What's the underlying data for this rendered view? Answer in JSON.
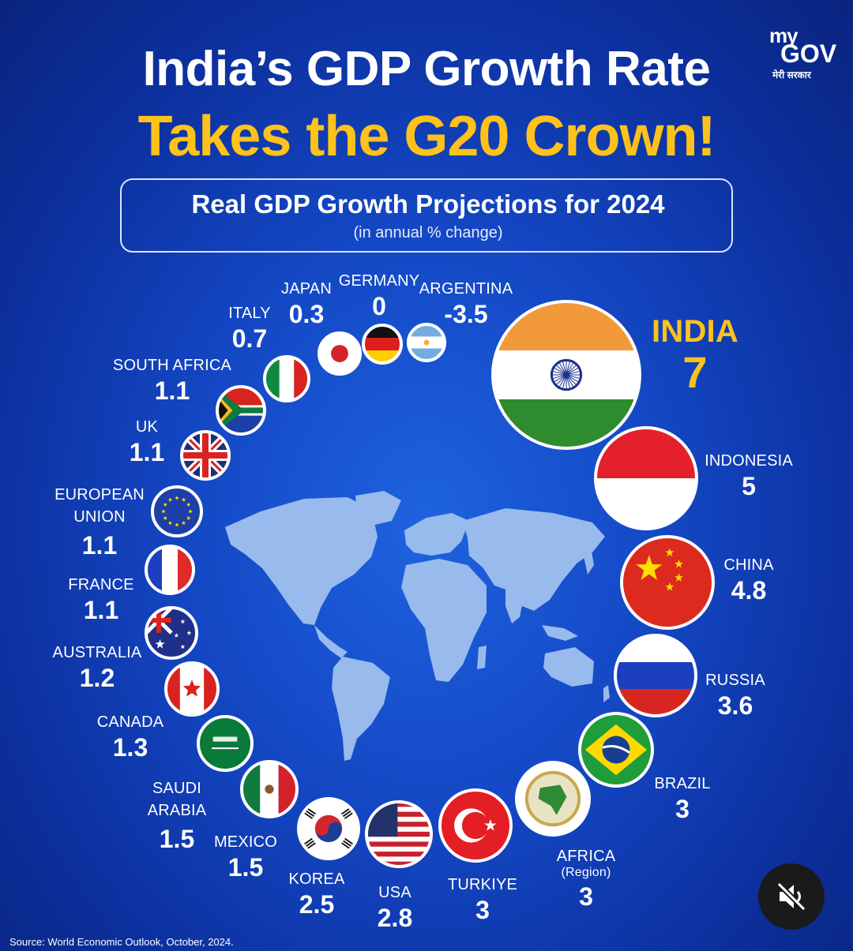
{
  "header": {
    "title_line1": "India’s GDP Growth Rate",
    "title_line2": "Takes the G20 Crown!",
    "subtitle": "Real GDP Growth Projections for 2024",
    "subtitle_note": "(in annual % change)"
  },
  "logo": {
    "line1": "my",
    "line2": "GOV",
    "line3": "मेरी सरकार"
  },
  "source": "Source: World Economic Outlook, October, 2024.",
  "colors": {
    "background": "#1447c4",
    "title_accent": "#ffc21a",
    "map": "#9fc0ee"
  },
  "chart_data": {
    "type": "bubble-ring",
    "title": "Real GDP Growth Projections for 2024",
    "unit": "(in annual % change)",
    "series": [
      {
        "name": "INDIA",
        "value": 7,
        "flag": "india"
      },
      {
        "name": "INDONESIA",
        "value": 5,
        "flag": "indonesia"
      },
      {
        "name": "CHINA",
        "value": 4.8,
        "flag": "china"
      },
      {
        "name": "RUSSIA",
        "value": 3.6,
        "flag": "russia"
      },
      {
        "name": "BRAZIL",
        "value": 3,
        "flag": "brazil"
      },
      {
        "name": "AFRICA",
        "sub": "(Region)",
        "value": 3,
        "flag": "african-union"
      },
      {
        "name": "TURKIYE",
        "value": 3,
        "flag": "turkiye"
      },
      {
        "name": "USA",
        "value": 2.8,
        "flag": "usa"
      },
      {
        "name": "KOREA",
        "value": 2.5,
        "flag": "korea"
      },
      {
        "name": "MEXICO",
        "value": 1.5,
        "flag": "mexico"
      },
      {
        "name": "SAUDI ARABIA",
        "value": 1.5,
        "flag": "saudi-arabia"
      },
      {
        "name": "CANADA",
        "value": 1.3,
        "flag": "canada"
      },
      {
        "name": "AUSTRALIA",
        "value": 1.2,
        "flag": "australia"
      },
      {
        "name": "FRANCE",
        "value": 1.1,
        "flag": "france"
      },
      {
        "name": "EUROPEAN UNION",
        "value": 1.1,
        "flag": "european-union"
      },
      {
        "name": "UK",
        "value": 1.1,
        "flag": "uk"
      },
      {
        "name": "SOUTH AFRICA",
        "value": 1.1,
        "flag": "south-africa"
      },
      {
        "name": "ITALY",
        "value": 0.7,
        "flag": "italy"
      },
      {
        "name": "JAPAN",
        "value": 0.3,
        "flag": "japan"
      },
      {
        "name": "GERMANY",
        "value": 0,
        "flag": "germany"
      },
      {
        "name": "ARGENTINA",
        "value": -3.5,
        "flag": "argentina"
      }
    ]
  }
}
